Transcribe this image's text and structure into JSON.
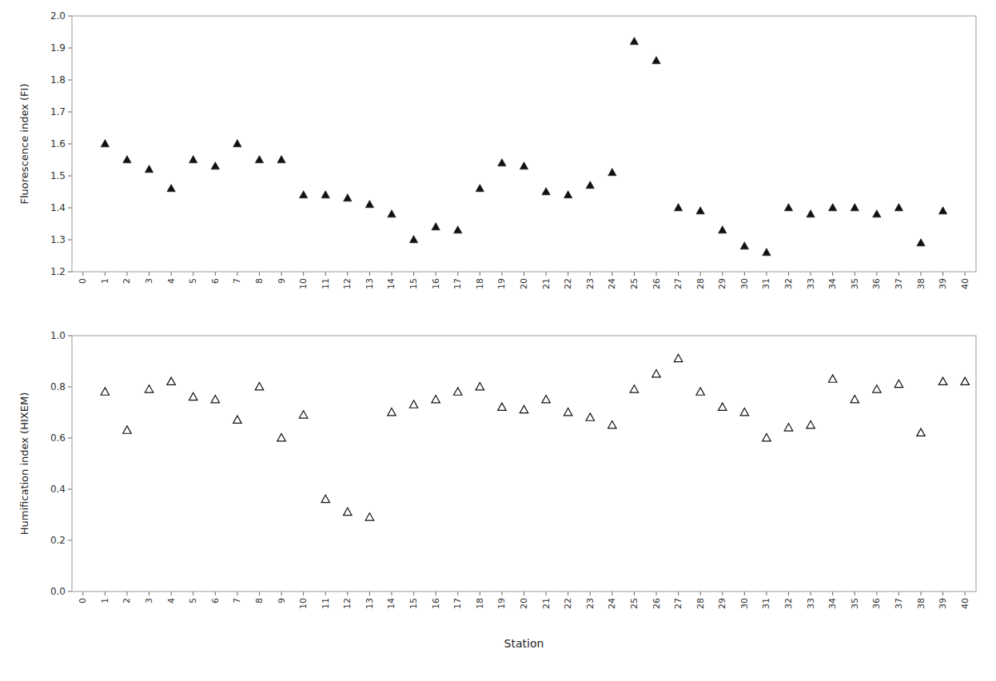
{
  "chart_data": [
    {
      "type": "scatter",
      "y_label": "Fluorescence index (FI)",
      "x": [
        1,
        2,
        3,
        4,
        5,
        6,
        7,
        8,
        9,
        10,
        11,
        12,
        13,
        14,
        15,
        16,
        17,
        18,
        19,
        20,
        21,
        22,
        23,
        24,
        25,
        26,
        27,
        28,
        29,
        30,
        31,
        32,
        33,
        34,
        35,
        36,
        37,
        38,
        39
      ],
      "values": [
        1.6,
        1.55,
        1.52,
        1.46,
        1.55,
        1.53,
        1.6,
        1.55,
        1.55,
        1.44,
        1.44,
        1.43,
        1.41,
        1.38,
        1.3,
        1.34,
        1.33,
        1.46,
        1.54,
        1.53,
        1.45,
        1.44,
        1.47,
        1.51,
        1.92,
        1.86,
        1.4,
        1.39,
        1.33,
        1.28,
        1.26,
        1.4,
        1.38,
        1.4,
        1.4,
        1.38,
        1.4,
        1.29,
        1.39
      ],
      "color": "#111111",
      "marker": "triangle",
      "xlim": [
        -0.5,
        40.5
      ],
      "xticks": [
        0,
        1,
        2,
        3,
        4,
        5,
        6,
        7,
        8,
        9,
        10,
        11,
        12,
        13,
        14,
        15,
        16,
        17,
        18,
        19,
        20,
        21,
        22,
        23,
        24,
        25,
        26,
        27,
        28,
        29,
        30,
        31,
        32,
        33,
        34,
        35,
        36,
        37,
        38,
        39,
        40
      ],
      "ylim": [
        1.2,
        2.0
      ],
      "yticks": [
        1.2,
        1.3,
        1.4,
        1.5,
        1.6,
        1.7,
        1.8,
        1.9,
        {
          "value": 2.0,
          "label": "2.0"
        }
      ],
      "grid": false
    },
    {
      "type": "scatter",
      "x_label": "Station",
      "y_label": "Humification index (HIXEM)",
      "x": [
        1,
        2,
        3,
        4,
        5,
        6,
        7,
        8,
        9,
        10,
        11,
        12,
        13,
        14,
        15,
        16,
        17,
        18,
        19,
        20,
        21,
        22,
        23,
        24,
        25,
        26,
        27,
        28,
        29,
        30,
        31,
        32,
        33,
        34,
        35,
        36,
        37,
        38,
        39,
        40
      ],
      "values": [
        0.78,
        0.63,
        0.79,
        0.82,
        0.76,
        0.75,
        0.67,
        0.8,
        0.6,
        0.69,
        0.36,
        0.31,
        0.29,
        0.7,
        0.73,
        0.75,
        0.78,
        0.8,
        0.72,
        0.71,
        0.75,
        0.7,
        0.68,
        0.65,
        0.79,
        0.85,
        0.91,
        0.78,
        0.72,
        0.7,
        0.6,
        0.64,
        0.65,
        0.83,
        0.75,
        0.79,
        0.81,
        0.62,
        0.82,
        0.82
      ],
      "color": "#111111",
      "marker": "triangle-open",
      "xlim": [
        -0.5,
        40.5
      ],
      "xticks": [
        0,
        1,
        2,
        3,
        4,
        5,
        6,
        7,
        8,
        9,
        10,
        11,
        12,
        13,
        14,
        15,
        16,
        17,
        18,
        19,
        20,
        21,
        22,
        23,
        24,
        25,
        26,
        27,
        28,
        29,
        30,
        31,
        32,
        33,
        34,
        35,
        36,
        37,
        38,
        39,
        40
      ],
      "ylim": [
        0.0,
        1.0
      ],
      "yticks": [
        {
          "value": 0.0,
          "label": "0.0"
        },
        0.2,
        0.4,
        0.6,
        0.8,
        {
          "value": 1.0,
          "label": "1.0"
        }
      ],
      "grid": false
    }
  ]
}
